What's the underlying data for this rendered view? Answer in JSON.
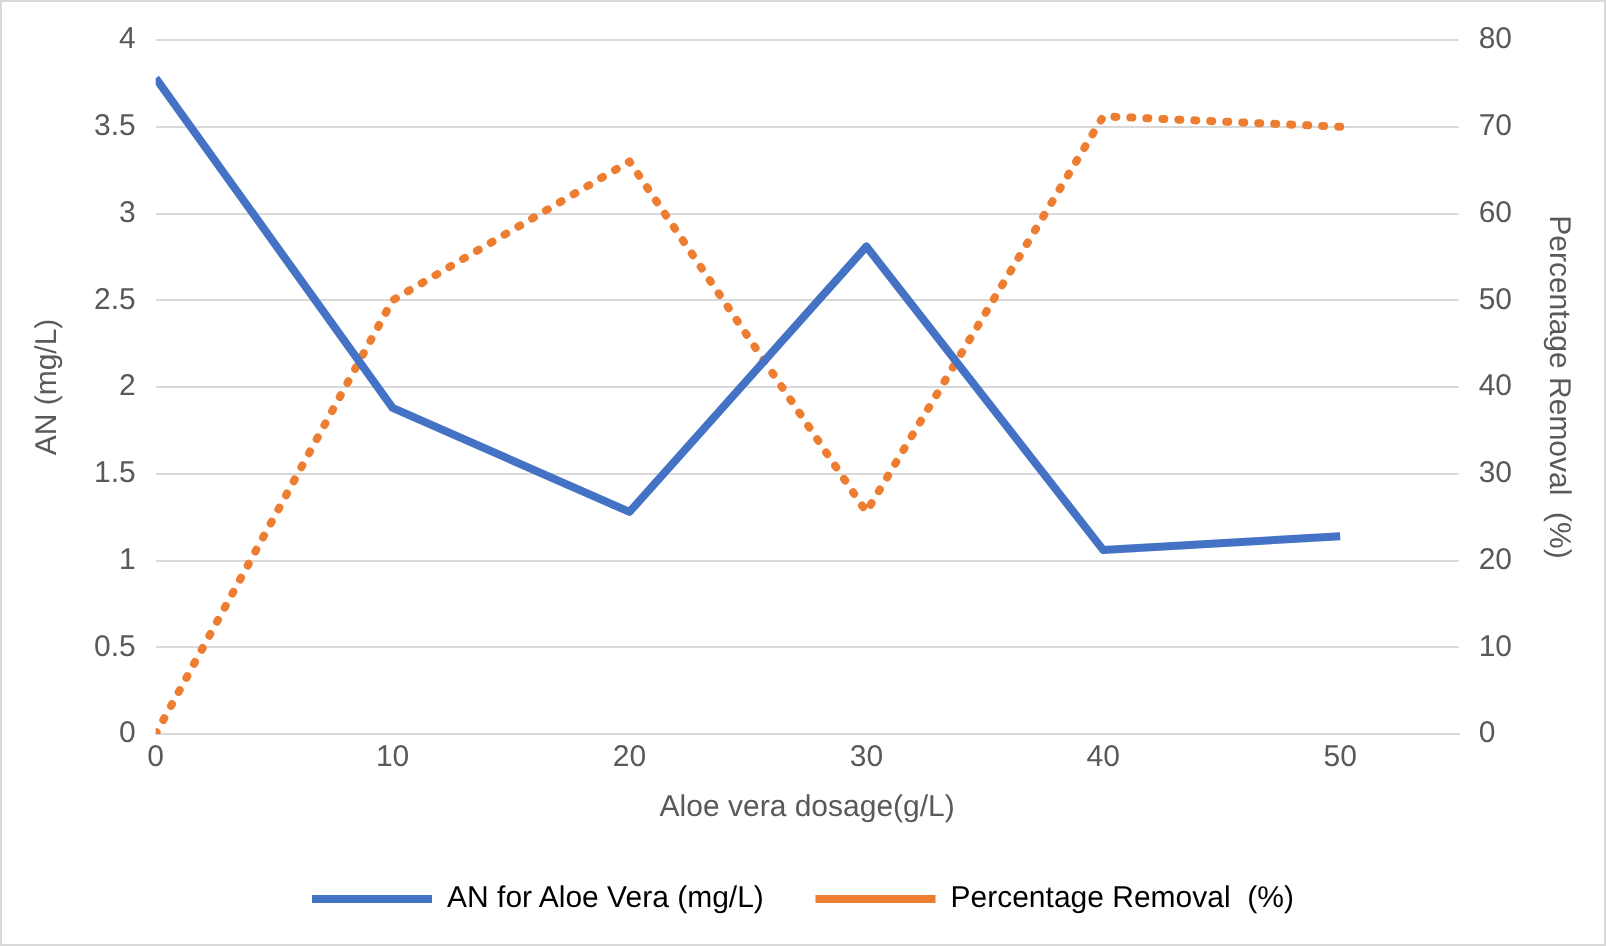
{
  "chart_data": {
    "type": "line",
    "xlabel": "Aloe vera dosage(g/L)",
    "ylabel": "AN (mg/L)",
    "y2label": "Percentage Removal  (%)",
    "x": [
      0,
      10,
      20,
      30,
      40,
      50
    ],
    "series": [
      {
        "name": "AN for Aloe Vera (mg/L)",
        "color": "#4472c4",
        "values": [
          3.78,
          1.88,
          1.28,
          2.81,
          1.06,
          1.14
        ],
        "line_style": "solid"
      },
      {
        "name": "Percentage Removal  (%)",
        "color": "#ed7d31",
        "values": [
          0,
          50,
          66,
          25.6,
          71.2,
          70
        ],
        "line_style": "dotted",
        "axis": "y2"
      }
    ],
    "xlim": [
      0,
      55
    ],
    "xticks": [
      0,
      10,
      20,
      30,
      40,
      50
    ],
    "ylim": [
      0,
      4
    ],
    "yticks": [
      0,
      0.5,
      1,
      1.5,
      2,
      2.5,
      3,
      3.5,
      4
    ],
    "y2lim": [
      0,
      80
    ],
    "y2ticks": [
      0,
      10,
      20,
      30,
      40,
      50,
      60,
      70,
      80
    ],
    "grid": "y",
    "legend": "bottom",
    "marker": "none"
  }
}
